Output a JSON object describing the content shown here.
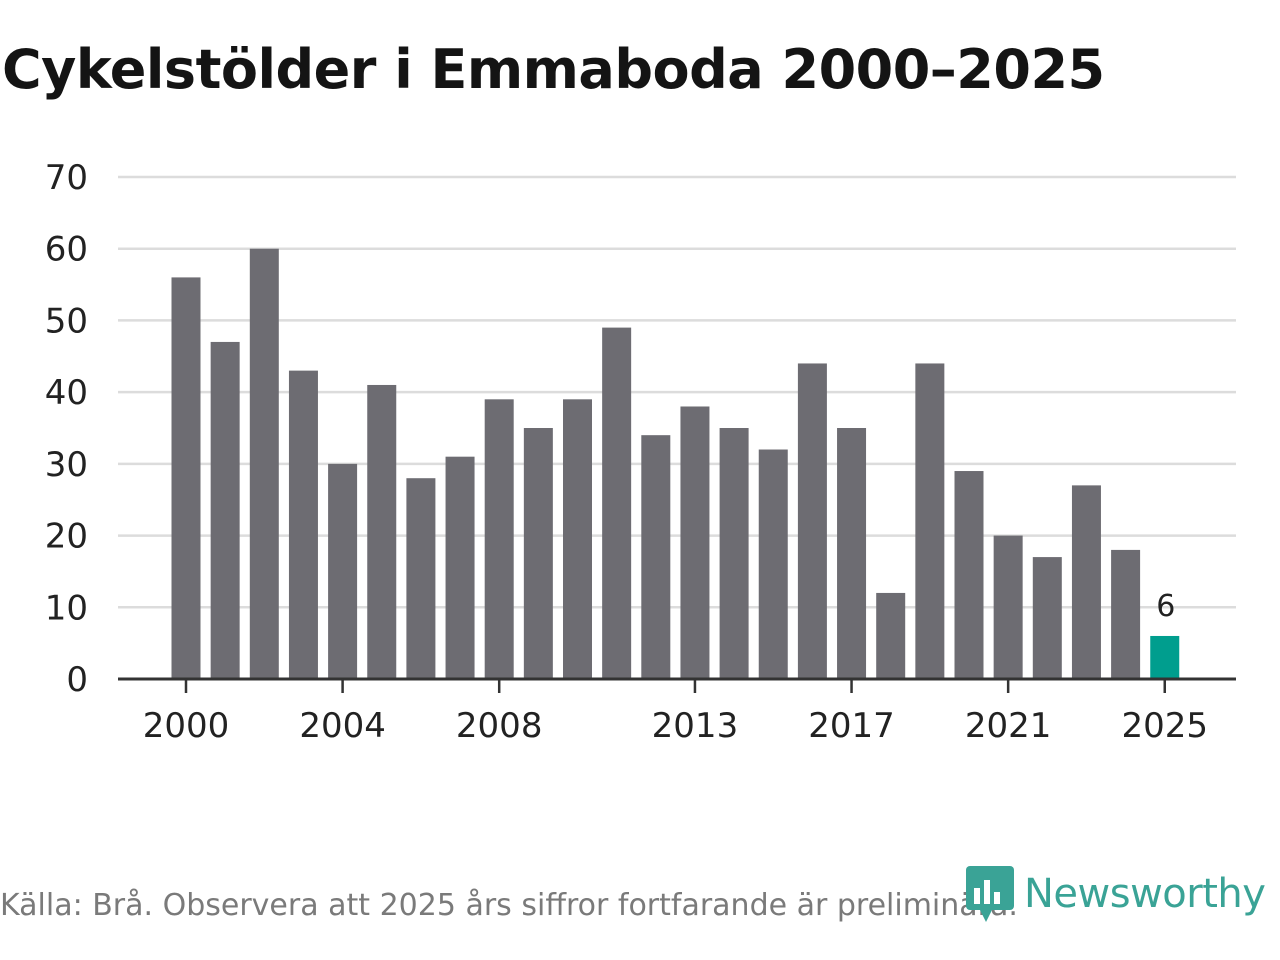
{
  "title": "Cykelstölder i Emmaboda 2000–2025",
  "footer": "Källa: Brå. Observera att 2025 års siffror fortfarande är preliminära.",
  "brand": {
    "name": "Newsworthy"
  },
  "colors": {
    "bar": "#6d6c72",
    "highlight": "#009e8e",
    "grid": "#dcdcdc",
    "axis": "#333333",
    "text": "#222222",
    "brand": "#3aa396"
  },
  "chart_data": {
    "type": "bar",
    "title": "Cykelstölder i Emmaboda 2000–2025",
    "xlabel": "",
    "ylabel": "",
    "ylim": [
      0,
      70
    ],
    "yticks": [
      "0",
      "10",
      "20",
      "30",
      "40",
      "50",
      "60",
      "70"
    ],
    "xticks": [
      "2000",
      "2004",
      "2008",
      "2013",
      "2017",
      "2021",
      "2025"
    ],
    "categories": [
      "2000",
      "2001",
      "2002",
      "2003",
      "2004",
      "2005",
      "2006",
      "2007",
      "2008",
      "2009",
      "2010",
      "2011",
      "2012",
      "2013",
      "2014",
      "2015",
      "2016",
      "2017",
      "2018",
      "2019",
      "2020",
      "2021",
      "2022",
      "2023",
      "2024",
      "2025"
    ],
    "values": [
      56,
      47,
      60,
      43,
      30,
      41,
      28,
      31,
      39,
      35,
      39,
      49,
      34,
      38,
      35,
      32,
      44,
      35,
      12,
      44,
      29,
      20,
      17,
      27,
      18,
      6
    ],
    "highlight": {
      "category": "2025",
      "label": "6"
    },
    "grid": true,
    "legend": "none"
  }
}
